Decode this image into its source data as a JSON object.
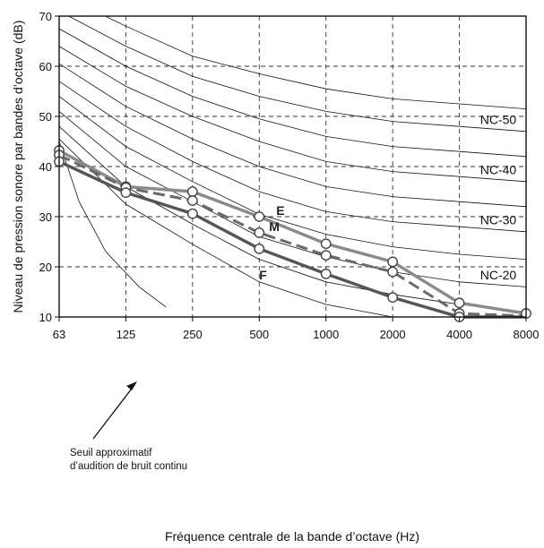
{
  "chart_data": {
    "type": "line",
    "xlabel": "Fréquence centrale de la bande d’octave (Hz)",
    "ylabel": "Niveau de pression sonore par bandes d’octave (dB)",
    "x_ticks": [
      "63",
      "125",
      "250",
      "500",
      "1000",
      "2000",
      "4000",
      "8000"
    ],
    "y_ticks": [
      "10",
      "20",
      "30",
      "40",
      "50",
      "60",
      "70"
    ],
    "ylim": [
      10,
      70
    ],
    "grid": true,
    "nc_curves": [
      {
        "label": "NC-20",
        "values": [
          51,
          40,
          33,
          26,
          22,
          19,
          17,
          16
        ]
      },
      {
        "label": "NC-30",
        "values": [
          57,
          48,
          41,
          35,
          31,
          29,
          28,
          27
        ]
      },
      {
        "label": "NC-40",
        "values": [
          64,
          56,
          50,
          45,
          41,
          39,
          38,
          37
        ]
      },
      {
        "label": "NC-50",
        "values": [
          71,
          64,
          58,
          54,
          51,
          49,
          48,
          47
        ]
      }
    ],
    "nc_intermediate_curves": [
      [
        45.5,
        32.5,
        24.5,
        17,
        12.5,
        10,
        10,
        10
      ],
      [
        48,
        36,
        28.5,
        21.5,
        17,
        14.5,
        12.5,
        11
      ],
      [
        54,
        44,
        37,
        30.5,
        26.5,
        24,
        22.5,
        21.5
      ],
      [
        60.5,
        52,
        45.5,
        40,
        36,
        34,
        33,
        32
      ],
      [
        67.5,
        60,
        54,
        49.5,
        46,
        44,
        43,
        42
      ],
      [
        74.5,
        68,
        62,
        58.5,
        55.5,
        53.5,
        52.5,
        51.5
      ]
    ],
    "threshold_curve": {
      "annotation": [
        "Seuil approximatif",
        "d’audition de bruit continu"
      ],
      "x": [
        1.0,
        1.3,
        1.7,
        2.2,
        2.6
      ],
      "values": [
        45,
        33,
        23,
        16,
        12
      ]
    },
    "series": [
      {
        "name": "E",
        "color": "#8a8a8a",
        "style": "solid",
        "values": [
          43.2,
          36.0,
          35.0,
          30.0,
          24.6,
          21.0,
          12.8,
          10.7
        ]
      },
      {
        "name": "M",
        "color": "#6a6a6a",
        "style": "dashed",
        "values": [
          42.3,
          35.8,
          33.2,
          26.8,
          22.3,
          19.0,
          10.7,
          10.2
        ]
      },
      {
        "name": "F",
        "color": "#555555",
        "style": "solid",
        "values": [
          41.0,
          34.8,
          30.6,
          23.6,
          18.6,
          13.9,
          10.0,
          10.0
        ]
      }
    ]
  }
}
